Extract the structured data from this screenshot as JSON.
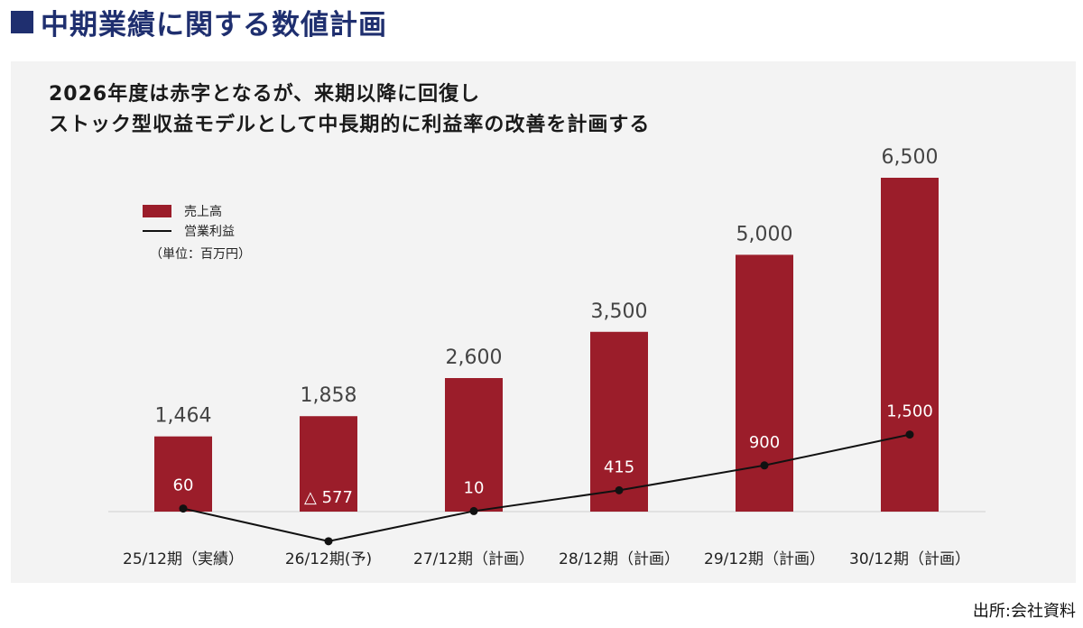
{
  "page_heading": "中期業績に関する数値計画",
  "chart_title_lines": [
    "2026年度は赤字となるが、来期以降に回復し",
    "ストック型収益モデルとして中長期的に利益率の改善を計画する"
  ],
  "source": "出所:会社資料",
  "colors": {
    "heading": "#1f2f6f",
    "bar": "#9b1d2a",
    "line": "#111111",
    "panel": "#f3f3f3"
  },
  "chart_data": {
    "type": "bar",
    "categories": [
      "25/12期（実績）",
      "26/12期(予)",
      "27/12期（計画）",
      "28/12期（計画）",
      "29/12期（計画）",
      "30/12期（計画）"
    ],
    "series": [
      {
        "name": "売上高",
        "type": "bar",
        "values": [
          1464,
          1858,
          2600,
          3500,
          5000,
          6500
        ],
        "labels": [
          "1,464",
          "1,858",
          "2,600",
          "3,500",
          "5,000",
          "6,500"
        ]
      },
      {
        "name": "営業利益",
        "type": "line",
        "values": [
          60,
          -577,
          10,
          415,
          900,
          1500
        ],
        "labels": [
          "60",
          "△ 577",
          "10",
          "415",
          "900",
          "1,500"
        ]
      }
    ],
    "unit_note": "（単位：百万円）",
    "ylim": [
      -700,
      6600
    ],
    "legend_position": "top-left",
    "grid": false
  }
}
